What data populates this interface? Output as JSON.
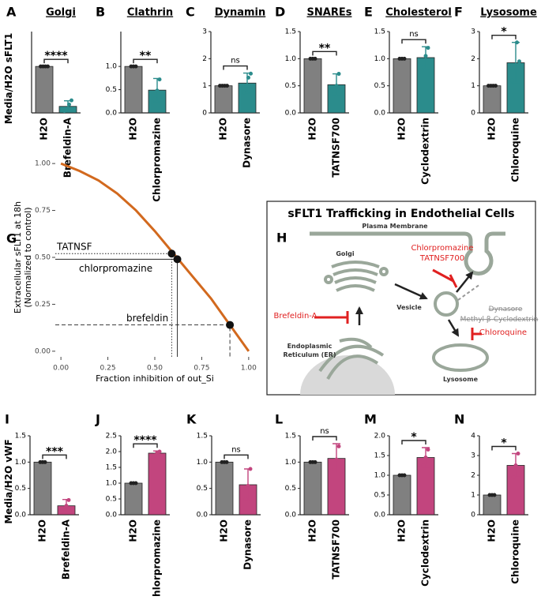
{
  "chart_data": [
    {
      "type": "bar",
      "label": "A",
      "title": "Golgi",
      "ylabel": "Media/H2O sFLT1",
      "categories": [
        "H2O",
        "Brefeldin-A"
      ],
      "values": [
        1,
        0.14
      ],
      "errors": [
        0,
        0.12
      ],
      "points": [
        [
          1,
          1,
          1,
          1
        ],
        [
          0.04,
          0.08,
          0.18,
          0.27
        ]
      ],
      "colors": [
        "#808080",
        "#2b8c8c"
      ],
      "significance": "****",
      "ylim": [
        0,
        1.75
      ]
    },
    {
      "type": "bar",
      "label": "B",
      "title": "Clathrin",
      "categories": [
        "H2O",
        "Chlorpromazine"
      ],
      "values": [
        1,
        0.49
      ],
      "errors": [
        0,
        0.25
      ],
      "points": [
        [
          1,
          1,
          1
        ],
        [
          0.3,
          0.48,
          0.72
        ]
      ],
      "colors": [
        "#808080",
        "#2b8c8c"
      ],
      "significance": "**",
      "ylim": [
        0,
        1.75
      ],
      "yticks": [
        {
          "value": 0,
          "label": "0.0"
        },
        0.5,
        {
          "value": 1,
          "label": "1.0"
        }
      ]
    },
    {
      "type": "bar",
      "label": "C",
      "title": "Dynamin",
      "categories": [
        "H2O",
        "Dynasore"
      ],
      "values": [
        1,
        1.1
      ],
      "errors": [
        0,
        0.37
      ],
      "points": [
        [
          1,
          1,
          1,
          1
        ],
        [
          0.75,
          1.0,
          1.3,
          1.45
        ]
      ],
      "colors": [
        "#808080",
        "#2b8c8c"
      ],
      "significance": "ns",
      "ylim": [
        0,
        3
      ],
      "yticks": [
        0,
        1,
        2,
        3
      ]
    },
    {
      "type": "bar",
      "label": "D",
      "title": "SNAREs",
      "categories": [
        "H2O",
        "TATNSF700"
      ],
      "values": [
        1,
        0.52
      ],
      "errors": [
        0,
        0.2
      ],
      "points": [
        [
          1,
          1,
          1
        ],
        [
          0.35,
          0.5,
          0.72
        ]
      ],
      "colors": [
        "#808080",
        "#2b8c8c"
      ],
      "significance": "**",
      "ylim": [
        0,
        1.5
      ],
      "yticks": [
        {
          "value": 0,
          "label": "0.0"
        },
        0.5,
        {
          "value": 1,
          "label": "1.0"
        },
        1.5
      ]
    },
    {
      "type": "bar",
      "label": "E",
      "title": "Cholesterol",
      "categories": [
        "H2O",
        "Cyclodextrin"
      ],
      "values": [
        1,
        1.02
      ],
      "errors": [
        0,
        0.2
      ],
      "points": [
        [
          1,
          1,
          1
        ],
        [
          0.85,
          1.05,
          1.2
        ]
      ],
      "colors": [
        "#808080",
        "#2b8c8c"
      ],
      "significance": "ns",
      "ylim": [
        0,
        1.5
      ],
      "yticks": [
        {
          "value": 0,
          "label": "0.0"
        },
        0.5,
        {
          "value": 1,
          "label": "1.0"
        },
        1.5
      ]
    },
    {
      "type": "bar",
      "label": "F",
      "title": "Lysosome",
      "categories": [
        "H2O",
        "Chloroquine"
      ],
      "values": [
        1,
        1.85
      ],
      "errors": [
        0,
        0.75
      ],
      "points": [
        [
          1,
          1,
          1,
          1
        ],
        [
          1.2,
          1.7,
          2.6,
          1.9
        ]
      ],
      "colors": [
        "#808080",
        "#2b8c8c"
      ],
      "significance": "*",
      "ylim": [
        0,
        3
      ],
      "yticks": [
        0,
        1,
        2,
        3
      ]
    },
    {
      "type": "line",
      "label": "G",
      "xlabel": "Fraction inhibition of out_Si",
      "ylabel": [
        "Extracellular sFLT1 at 18h",
        "(Normalized to control)"
      ],
      "color": "#d2691e",
      "x": [
        0,
        0.1,
        0.2,
        0.3,
        0.4,
        0.5,
        0.6,
        0.7,
        0.8,
        0.9,
        1.0
      ],
      "y": [
        1.0,
        0.96,
        0.91,
        0.84,
        0.75,
        0.64,
        0.52,
        0.4,
        0.28,
        0.14,
        0.0
      ],
      "xlim": [
        -0.03,
        1.03
      ],
      "ylim": [
        -0.03,
        1.03
      ],
      "xticks": [
        {
          "value": 0,
          "label": "0.00"
        },
        0.25,
        {
          "value": 0.5,
          "label": "0.50"
        },
        0.75,
        {
          "value": 1,
          "label": "1.00"
        }
      ],
      "yticks": [
        {
          "value": 0,
          "label": "0.00"
        },
        0.25,
        {
          "value": 0.5,
          "label": "0.50"
        },
        0.75,
        {
          "value": 1,
          "label": "1.00"
        }
      ],
      "annotations": [
        {
          "text": "TATNSF",
          "x": 0.59,
          "y": 0.52,
          "style": "dotted"
        },
        {
          "text": "chlorpromazine",
          "x": 0.62,
          "y": 0.49,
          "style": "solid"
        },
        {
          "text": "brefeldin",
          "x": 0.9,
          "y": 0.14,
          "style": "dashed"
        }
      ]
    },
    {
      "type": "bar",
      "label": "I",
      "ylabel": "Media/H2O vWF",
      "categories": [
        "H2O",
        "Brefeldin-A"
      ],
      "values": [
        1,
        0.17
      ],
      "errors": [
        0,
        0.12
      ],
      "points": [
        [
          1,
          1,
          1
        ],
        [
          0.05,
          0.17,
          0.28
        ]
      ],
      "colors": [
        "#808080",
        "#c2457e"
      ],
      "significance": "***",
      "ylim": [
        0,
        1.5
      ],
      "yticks": [
        {
          "value": 0,
          "label": "0.0"
        },
        0.5,
        {
          "value": 1,
          "label": "1.0"
        },
        1.5
      ]
    },
    {
      "type": "bar",
      "label": "J",
      "categories": [
        "H2O",
        "Chlorpromazine"
      ],
      "values": [
        1,
        1.95
      ],
      "errors": [
        0,
        0.07
      ],
      "points": [
        [
          1,
          1,
          1
        ],
        [
          1.88,
          1.97,
          2.0
        ]
      ],
      "colors": [
        "#808080",
        "#c2457e"
      ],
      "significance": "****",
      "ylim": [
        0,
        2.5
      ],
      "yticks": [
        {
          "value": 0,
          "label": "0.0"
        },
        0.5,
        {
          "value": 1,
          "label": "1.0"
        },
        1.5,
        {
          "value": 2,
          "label": "2.0"
        },
        2.5
      ]
    },
    {
      "type": "bar",
      "label": "K",
      "categories": [
        "H2O",
        "Dynasore"
      ],
      "values": [
        1,
        0.57
      ],
      "errors": [
        0,
        0.3
      ],
      "points": [
        [
          1,
          1,
          1
        ],
        [
          0.3,
          0.55,
          0.87
        ]
      ],
      "colors": [
        "#808080",
        "#c2457e"
      ],
      "significance": "ns",
      "ylim": [
        0,
        1.5
      ],
      "yticks": [
        {
          "value": 0,
          "label": "0.0"
        },
        0.5,
        {
          "value": 1,
          "label": "1.0"
        },
        1.5
      ]
    },
    {
      "type": "bar",
      "label": "L",
      "categories": [
        "H2O",
        "TATNSF700"
      ],
      "values": [
        1,
        1.07
      ],
      "errors": [
        0,
        0.28
      ],
      "points": [
        [
          1,
          1,
          1
        ],
        [
          0.85,
          1.05,
          1.3
        ]
      ],
      "colors": [
        "#808080",
        "#c2457e"
      ],
      "significance": "ns",
      "ylim": [
        0,
        1.5
      ],
      "yticks": [
        {
          "value": 0,
          "label": "0.0"
        },
        0.5,
        {
          "value": 1,
          "label": "1.0"
        },
        1.5
      ]
    },
    {
      "type": "bar",
      "label": "M",
      "categories": [
        "H2O",
        "Cyclodextrin"
      ],
      "values": [
        1,
        1.45
      ],
      "errors": [
        0,
        0.25
      ],
      "points": [
        [
          1,
          1,
          1
        ],
        [
          1.25,
          1.45,
          1.65
        ]
      ],
      "colors": [
        "#808080",
        "#c2457e"
      ],
      "significance": "*",
      "ylim": [
        0,
        2
      ],
      "yticks": [
        {
          "value": 0,
          "label": "0.0"
        },
        0.5,
        {
          "value": 1,
          "label": "1.0"
        },
        1.5,
        {
          "value": 2,
          "label": "2.0"
        }
      ]
    },
    {
      "type": "bar",
      "label": "N",
      "categories": [
        "H2O",
        "Chloroquine"
      ],
      "values": [
        1,
        2.5
      ],
      "errors": [
        0,
        0.6
      ],
      "points": [
        [
          1,
          1,
          1
        ],
        [
          1.9,
          2.5,
          3.1
        ]
      ],
      "colors": [
        "#808080",
        "#c2457e"
      ],
      "significance": "*",
      "ylim": [
        0,
        4
      ],
      "yticks": [
        0,
        1,
        2,
        3,
        4
      ]
    }
  ],
  "diagram": {
    "label": "H",
    "title": "sFLT1 Trafficking in Endothelial Cells",
    "membrane": "Plasma Membrane",
    "golgi": "Golgi",
    "inhibitors_endocytosis": [
      "Chlorpromazine",
      "TATNSF700"
    ],
    "struck": [
      "Dynasore",
      "Methyl β-Cyclodextrin"
    ],
    "brefeldin": "Brefeldin-A",
    "vesicle": "Vesicle",
    "chloroquine": "Chloroquine",
    "er": [
      "Endoplasmic",
      "Reticulum (ER)"
    ],
    "lysosome": "Lysosome"
  }
}
